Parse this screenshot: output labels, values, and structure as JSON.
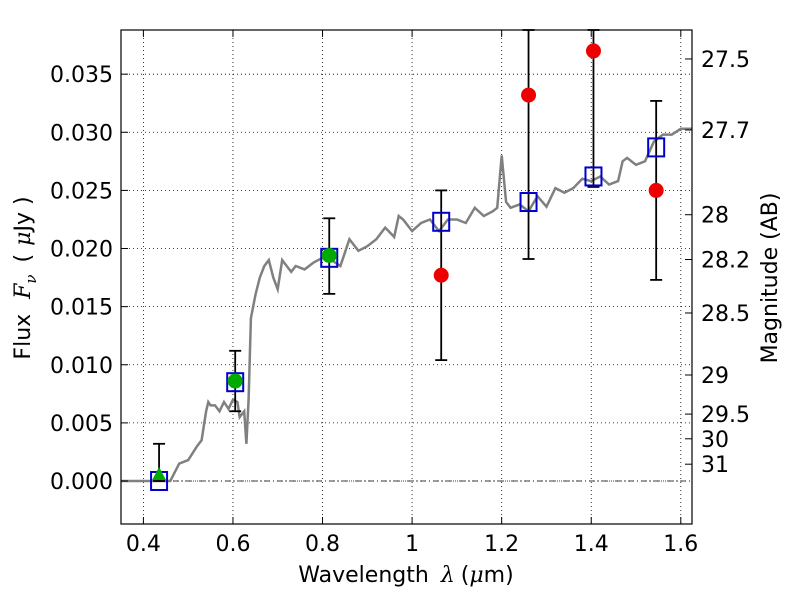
{
  "chart_data": {
    "type": "scatter",
    "xlabel": {
      "text": "Wavelength",
      "symbol": "λ",
      "unit": "(μm)",
      "unit_pre": "(",
      "unit_mu": "μ",
      "unit_post": "m)"
    },
    "ylabel": {
      "text": "Flux",
      "symbol": "F",
      "subscript": "ν",
      "unit_pre": "(",
      "unit_mu": "μ",
      "unit_post": "Jy )"
    },
    "y2label": "Magnitude (AB)",
    "xlim": [
      0.35,
      1.625
    ],
    "ylim": [
      -0.0037,
      0.0388
    ],
    "grid": true,
    "x_ticks": [
      {
        "value": 0.4,
        "label": "0.4"
      },
      {
        "value": 0.6,
        "label": "0.6"
      },
      {
        "value": 0.8,
        "label": "0.8"
      },
      {
        "value": 1.0,
        "label": "1"
      },
      {
        "value": 1.2,
        "label": "1.2"
      },
      {
        "value": 1.4,
        "label": "1.4"
      },
      {
        "value": 1.6,
        "label": "1.6"
      }
    ],
    "y_ticks": [
      {
        "value": 0.0,
        "label": "0.000"
      },
      {
        "value": 0.005,
        "label": "0.005"
      },
      {
        "value": 0.01,
        "label": "0.010"
      },
      {
        "value": 0.015,
        "label": "0.015"
      },
      {
        "value": 0.02,
        "label": "0.020"
      },
      {
        "value": 0.025,
        "label": "0.025"
      },
      {
        "value": 0.03,
        "label": "0.030"
      },
      {
        "value": 0.035,
        "label": "0.035"
      }
    ],
    "y2_ticks": [
      {
        "value": 27.5,
        "label": "27.5"
      },
      {
        "value": 27.7,
        "label": "27.7"
      },
      {
        "value": 28,
        "label": "28"
      },
      {
        "value": 28.2,
        "label": "28.2"
      },
      {
        "value": 28.5,
        "label": "28.5"
      },
      {
        "value": 29,
        "label": "29"
      },
      {
        "value": 29.5,
        "label": "29.5"
      },
      {
        "value": 30,
        "label": "30"
      },
      {
        "value": 31,
        "label": "31"
      }
    ],
    "model_spectrum": {
      "color": "#808080",
      "x": [
        0.35,
        0.44,
        0.46,
        0.48,
        0.5,
        0.52,
        0.53,
        0.54,
        0.545,
        0.55,
        0.56,
        0.57,
        0.58,
        0.59,
        0.6,
        0.61,
        0.615,
        0.625,
        0.63,
        0.635,
        0.64,
        0.65,
        0.66,
        0.67,
        0.68,
        0.69,
        0.7,
        0.71,
        0.72,
        0.73,
        0.74,
        0.76,
        0.78,
        0.8,
        0.82,
        0.84,
        0.86,
        0.88,
        0.9,
        0.92,
        0.94,
        0.96,
        0.97,
        0.98,
        1.0,
        1.02,
        1.04,
        1.06,
        1.08,
        1.1,
        1.12,
        1.14,
        1.16,
        1.18,
        1.19,
        1.2,
        1.21,
        1.22,
        1.24,
        1.26,
        1.28,
        1.3,
        1.32,
        1.34,
        1.36,
        1.38,
        1.4,
        1.42,
        1.44,
        1.46,
        1.47,
        1.48,
        1.5,
        1.52,
        1.54,
        1.56,
        1.58,
        1.6,
        1.625
      ],
      "y": [
        0.0,
        0.0,
        0.0,
        0.0015,
        0.0018,
        0.003,
        0.0035,
        0.006,
        0.0068,
        0.0065,
        0.0065,
        0.006,
        0.0068,
        0.0062,
        0.007,
        0.0068,
        0.0055,
        0.006,
        0.0032,
        0.007,
        0.014,
        0.016,
        0.0175,
        0.0185,
        0.019,
        0.0175,
        0.0165,
        0.019,
        0.0185,
        0.018,
        0.0185,
        0.0182,
        0.0188,
        0.0192,
        0.019,
        0.0185,
        0.0208,
        0.0198,
        0.0202,
        0.0208,
        0.0218,
        0.021,
        0.0228,
        0.0225,
        0.0215,
        0.0222,
        0.0225,
        0.0215,
        0.0225,
        0.0225,
        0.0222,
        0.0235,
        0.0228,
        0.0232,
        0.0235,
        0.028,
        0.024,
        0.0235,
        0.0238,
        0.0232,
        0.0245,
        0.0236,
        0.0252,
        0.0248,
        0.0252,
        0.026,
        0.0258,
        0.0262,
        0.0255,
        0.0258,
        0.0275,
        0.0278,
        0.0272,
        0.0275,
        0.0292,
        0.0298,
        0.0298,
        0.0303,
        0.0303
      ]
    },
    "series": [
      {
        "marker": "open-square",
        "color": "#0000cc",
        "x": [
          0.435,
          0.605,
          0.815,
          1.065,
          1.26,
          1.405,
          1.545
        ],
        "y": [
          0.0,
          0.0085,
          0.0192,
          0.0223,
          0.024,
          0.0262,
          0.0287
        ]
      },
      {
        "marker": "filled-circle",
        "color": "#00aa00",
        "x": [
          0.605,
          0.815
        ],
        "y": [
          0.0086,
          0.0194
        ]
      },
      {
        "marker": "filled-triangle",
        "color": "#00aa00",
        "x": [
          0.435
        ],
        "y": [
          0.0006
        ]
      },
      {
        "marker": "filled-circle",
        "color": "#ee0000",
        "x": [
          1.065,
          1.26,
          1.405,
          1.545
        ],
        "y": [
          0.0177,
          0.0332,
          0.037,
          0.025
        ]
      }
    ],
    "error_bars": [
      {
        "x": 0.435,
        "low": 0.0,
        "high": 0.0032
      },
      {
        "x": 0.605,
        "low": 0.006,
        "high": 0.0112
      },
      {
        "x": 0.815,
        "low": 0.0161,
        "high": 0.0226
      },
      {
        "x": 1.065,
        "low": 0.0104,
        "high": 0.025
      },
      {
        "x": 1.26,
        "low": 0.0191,
        "high": 0.0388
      },
      {
        "x": 1.405,
        "low": 0.0253,
        "high": 0.0388
      },
      {
        "x": 1.545,
        "low": 0.0173,
        "high": 0.0327
      }
    ]
  }
}
